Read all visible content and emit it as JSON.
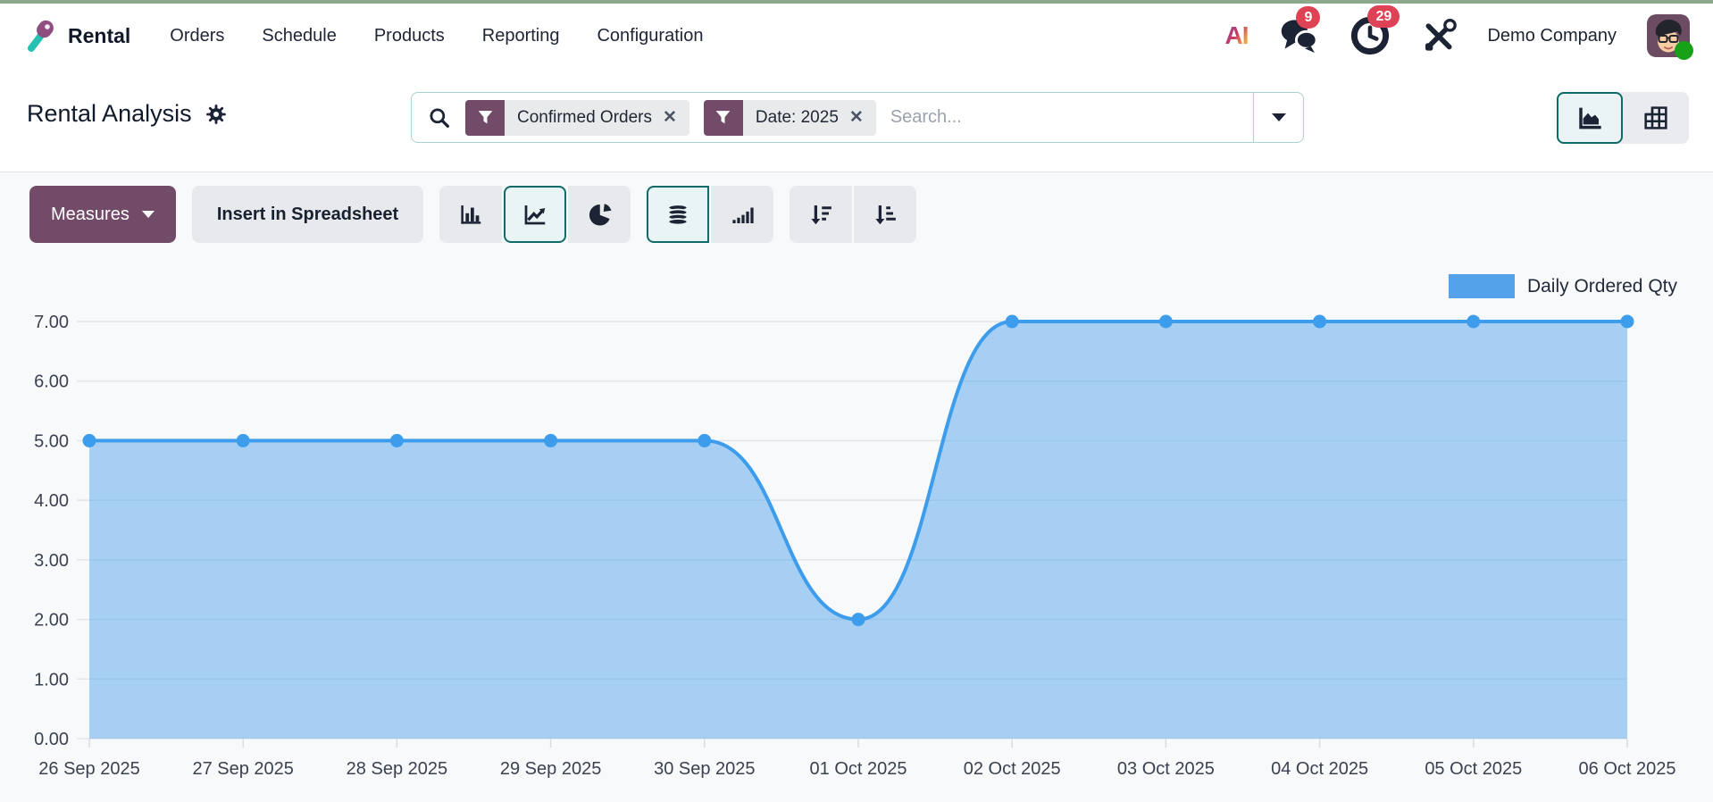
{
  "theme": {
    "primary": "#714B67",
    "active_teal_border": "#0e6b69",
    "badge_red": "#dd4255",
    "top_strip_green": "#8ca98a"
  },
  "topbar": {
    "app_name": "Rental",
    "menu": [
      "Orders",
      "Schedule",
      "Products",
      "Reporting",
      "Configuration"
    ],
    "ai_label": "AI",
    "messages_badge": "9",
    "activities_badge": "29",
    "company_name": "Demo Company"
  },
  "control_panel": {
    "title": "Rental Analysis",
    "search": {
      "placeholder": "Search...",
      "facet_remove_glyph": "✕",
      "facets": [
        {
          "icon": "filter-icon",
          "label": "Confirmed Orders"
        },
        {
          "icon": "filter-icon",
          "label": "Date: 2025"
        }
      ]
    },
    "view_switcher": {
      "views": [
        "graph",
        "pivot"
      ],
      "active_view": "graph"
    }
  },
  "toolbar": {
    "measures_label": "Measures",
    "insert_in_spreadsheet_label": "Insert in Spreadsheet",
    "chart_type_buttons": [
      "bar-chart",
      "line-chart",
      "pie-chart"
    ],
    "active_chart_type": "line-chart",
    "option_buttons": [
      "stacked",
      "cumulative"
    ],
    "active_option": "stacked",
    "sort_buttons": [
      "sort-descending",
      "sort-ascending"
    ]
  },
  "chart_data": {
    "type": "area",
    "title": "",
    "x": [
      "26 Sep 2025",
      "27 Sep 2025",
      "28 Sep 2025",
      "29 Sep 2025",
      "30 Sep 2025",
      "01 Oct 2025",
      "02 Oct 2025",
      "03 Oct 2025",
      "04 Oct 2025",
      "05 Oct 2025",
      "06 Oct 2025"
    ],
    "series": [
      {
        "name": "Daily Ordered Qty",
        "values": [
          5,
          5,
          5,
          5,
          5,
          2,
          7,
          7,
          7,
          7,
          7
        ]
      }
    ],
    "ylim": [
      0,
      7
    ],
    "yticks": [
      "0.00",
      "1.00",
      "2.00",
      "3.00",
      "4.00",
      "5.00",
      "6.00",
      "7.00"
    ],
    "grid": true,
    "smooth": true,
    "legend_position": "top-right",
    "colors": {
      "line": "#3d9ceb",
      "fill": "rgba(84,165,235,0.5)",
      "legend_swatch": "#54a3ea",
      "gridline": "#e2e5e9",
      "axis_text": "#3a4150"
    }
  }
}
